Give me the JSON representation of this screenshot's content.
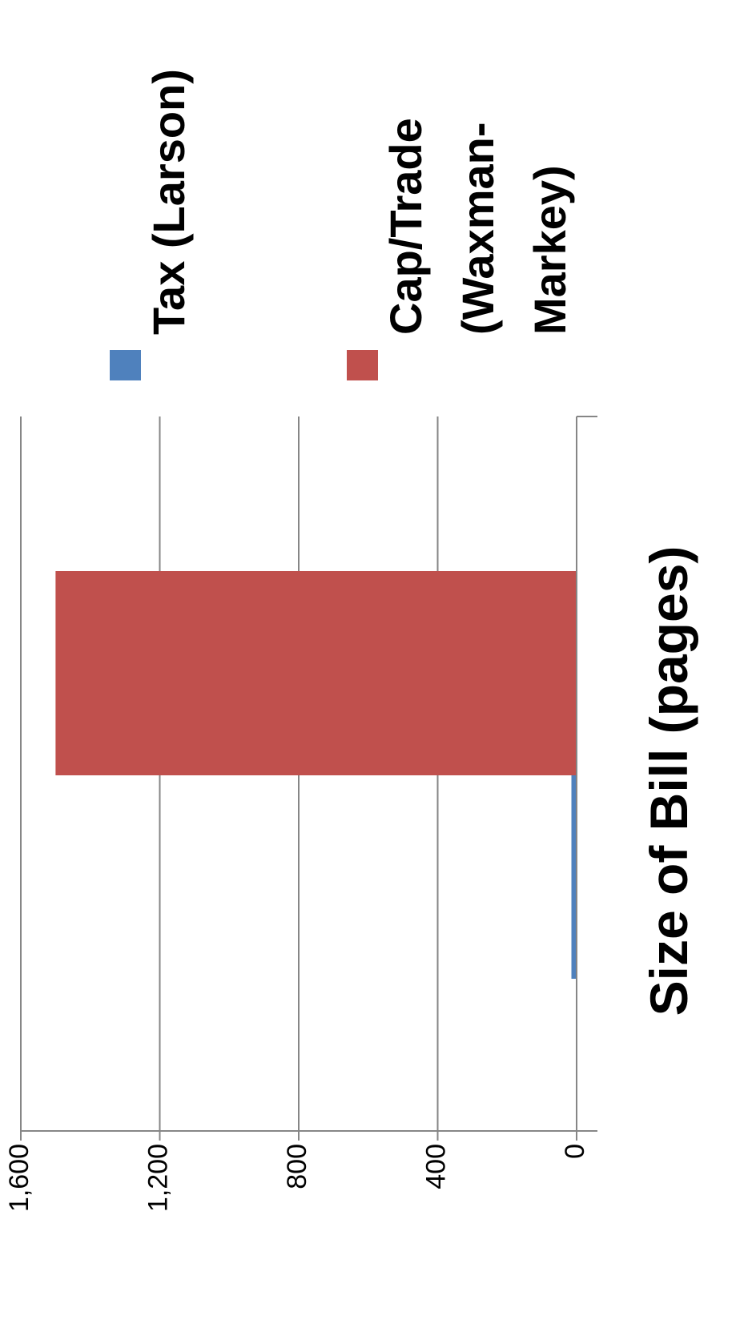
{
  "chart_data": {
    "type": "bar",
    "orientation": "vertical (image rotated 90° counter-clockwise)",
    "categories": [
      ""
    ],
    "series": [
      {
        "name": "Tax (Larson)",
        "values": [
          15
        ],
        "color": "#4f81bd"
      },
      {
        "name": "Cap/Trade (Waxman-Markey)",
        "values": [
          1500
        ],
        "color": "#c0504d"
      }
    ],
    "legend_lines": [
      [
        "Tax (Larson)"
      ],
      [
        "Cap/Trade",
        "(Waxman-",
        "Markey)"
      ]
    ],
    "title": "",
    "xlabel": "Size of Bill (pages)",
    "ylabel": "",
    "ylim": [
      0,
      1600
    ],
    "yticks": [
      0,
      400,
      800,
      1200,
      1600
    ],
    "ytick_labels": [
      "0",
      "400",
      "800",
      "1,200",
      "1,600"
    ],
    "grid": true,
    "legend_position": "top"
  }
}
